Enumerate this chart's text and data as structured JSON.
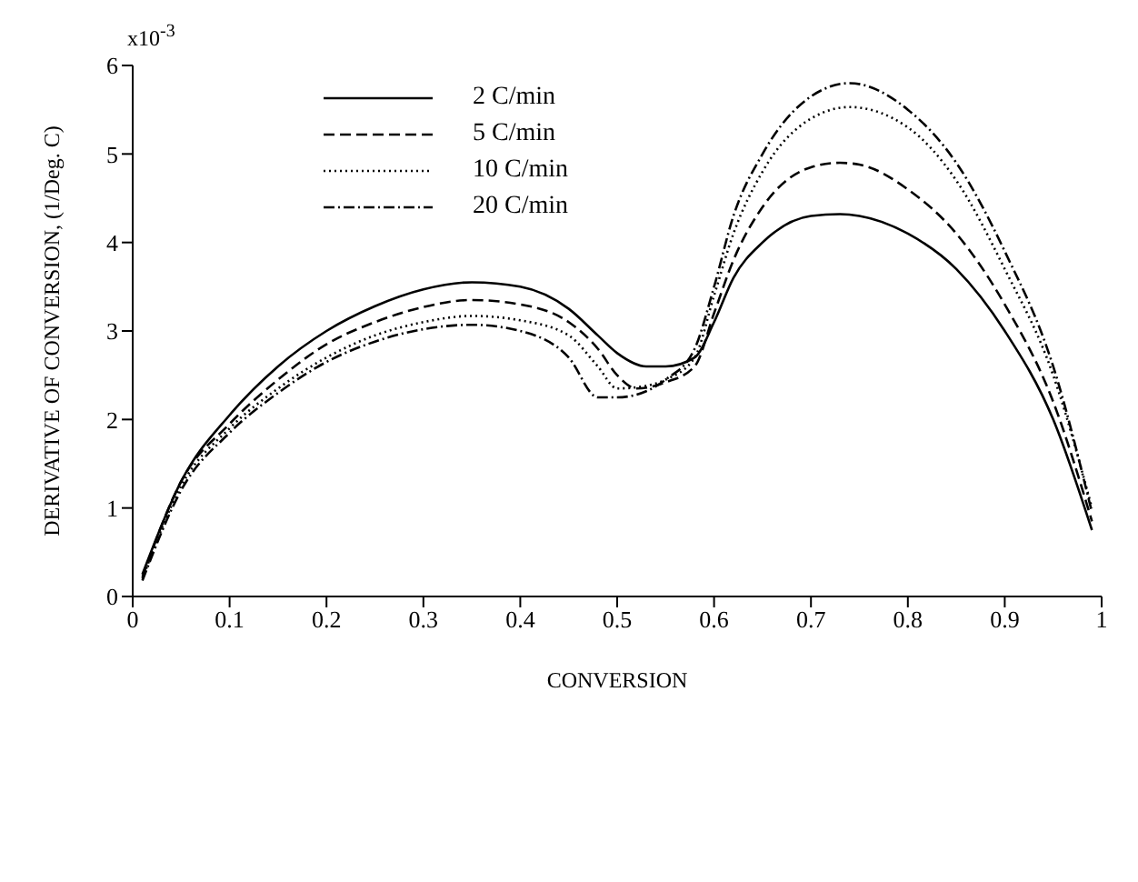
{
  "chart_data": {
    "type": "line",
    "xlabel": "CONVERSION",
    "ylabel": "DERIVATIVE OF CONVERSION, (1/Deg. C)",
    "annotations": [
      "x10$^{-3}$"
    ],
    "xlim": [
      0,
      1
    ],
    "xticks": [
      0,
      0.1,
      0.2,
      0.3,
      0.4,
      0.5,
      0.6,
      0.7,
      0.8,
      0.9,
      1
    ],
    "ylim": [
      0,
      6
    ],
    "yticks": [
      0,
      1,
      2,
      3,
      4,
      5,
      6
    ],
    "legend": "top left",
    "marker": "none",
    "series": [
      {
        "name": "2  C/min",
        "color": "#000000",
        "line_style": "solid",
        "x": [
          0.01,
          0.05,
          0.1,
          0.15,
          0.2,
          0.25,
          0.3,
          0.35,
          0.4,
          0.45,
          0.48,
          0.5,
          0.53,
          0.55,
          0.58,
          0.6,
          0.62,
          0.65,
          0.7,
          0.73,
          0.75,
          0.8,
          0.85,
          0.9,
          0.95,
          0.99
        ],
        "values": [
          0.25,
          1.3,
          2.05,
          2.6,
          3.0,
          3.28,
          3.47,
          3.55,
          3.5,
          3.25,
          2.95,
          2.75,
          2.6,
          2.6,
          2.7,
          3.1,
          3.6,
          4.0,
          4.3,
          4.32,
          4.3,
          4.1,
          3.7,
          3.0,
          2.0,
          0.75
        ]
      },
      {
        "name": "5  C/min",
        "color": "#000000",
        "line_style": "dashed",
        "x": [
          0.01,
          0.05,
          0.1,
          0.15,
          0.2,
          0.25,
          0.3,
          0.35,
          0.4,
          0.45,
          0.48,
          0.5,
          0.52,
          0.55,
          0.58,
          0.6,
          0.62,
          0.65,
          0.7,
          0.73,
          0.75,
          0.8,
          0.85,
          0.9,
          0.95,
          0.99
        ],
        "values": [
          0.22,
          1.3,
          1.95,
          2.45,
          2.85,
          3.1,
          3.27,
          3.35,
          3.3,
          3.1,
          2.8,
          2.5,
          2.35,
          2.42,
          2.6,
          3.2,
          3.8,
          4.4,
          4.85,
          4.9,
          4.88,
          4.6,
          4.1,
          3.3,
          2.2,
          0.85
        ]
      },
      {
        "name": "10 C/min",
        "color": "#000000",
        "line_style": "dotted",
        "x": [
          0.01,
          0.05,
          0.1,
          0.15,
          0.2,
          0.25,
          0.3,
          0.35,
          0.4,
          0.45,
          0.48,
          0.5,
          0.53,
          0.55,
          0.58,
          0.6,
          0.62,
          0.65,
          0.7,
          0.74,
          0.8,
          0.85,
          0.9,
          0.95,
          0.99
        ],
        "values": [
          0.2,
          1.25,
          1.9,
          2.35,
          2.7,
          2.95,
          3.1,
          3.17,
          3.12,
          2.95,
          2.6,
          2.35,
          2.38,
          2.45,
          2.7,
          3.4,
          4.1,
          4.8,
          5.4,
          5.53,
          5.3,
          4.7,
          3.7,
          2.5,
          1.0
        ]
      },
      {
        "name": "20 C/min",
        "color": "#000000",
        "line_style": "dashdot",
        "x": [
          0.01,
          0.05,
          0.1,
          0.15,
          0.2,
          0.25,
          0.3,
          0.35,
          0.4,
          0.45,
          0.48,
          0.5,
          0.53,
          0.55,
          0.58,
          0.6,
          0.62,
          0.65,
          0.7,
          0.74,
          0.8,
          0.85,
          0.9,
          0.95,
          0.99
        ],
        "values": [
          0.18,
          1.2,
          1.85,
          2.3,
          2.65,
          2.88,
          3.02,
          3.07,
          3.0,
          2.7,
          2.25,
          2.25,
          2.32,
          2.45,
          2.8,
          3.5,
          4.3,
          5.0,
          5.65,
          5.8,
          5.5,
          4.9,
          3.9,
          2.6,
          0.95
        ]
      }
    ]
  }
}
